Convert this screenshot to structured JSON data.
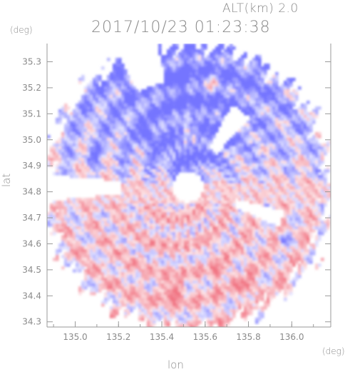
{
  "header": {
    "altitude": "ALT(km) 2.0",
    "datetime": "2017/10/23 01:23:38"
  },
  "chart_data": {
    "type": "heatmap",
    "title": "2017/10/23 01:23:38",
    "subtitle": "ALT(km) 2.0",
    "xlabel": "lon",
    "ylabel": "lat",
    "x_unit": "(deg)",
    "y_unit": "(deg)",
    "xlim": [
      134.87,
      136.18
    ],
    "ylim": [
      34.28,
      35.37
    ],
    "x_ticks": [
      135.0,
      135.2,
      135.4,
      135.6,
      135.8,
      136.0
    ],
    "x_tick_labels": [
      "135.0",
      "135.2",
      "135.4",
      "135.6",
      "135.8",
      "136.0"
    ],
    "y_ticks": [
      34.3,
      34.4,
      34.5,
      34.6,
      34.7,
      34.8,
      34.9,
      35.0,
      35.1,
      35.2,
      35.3
    ],
    "y_tick_labels": [
      "34.3",
      "34.4",
      "34.5",
      "34.6",
      "34.7",
      "34.8",
      "34.9",
      "35.0",
      "35.1",
      "35.2",
      "35.3"
    ],
    "radar_center": [
      135.52,
      34.82
    ],
    "colors": {
      "positive": "#f06a7a",
      "negative": "#6a6aff",
      "axis": "#9a9a9a"
    }
  }
}
